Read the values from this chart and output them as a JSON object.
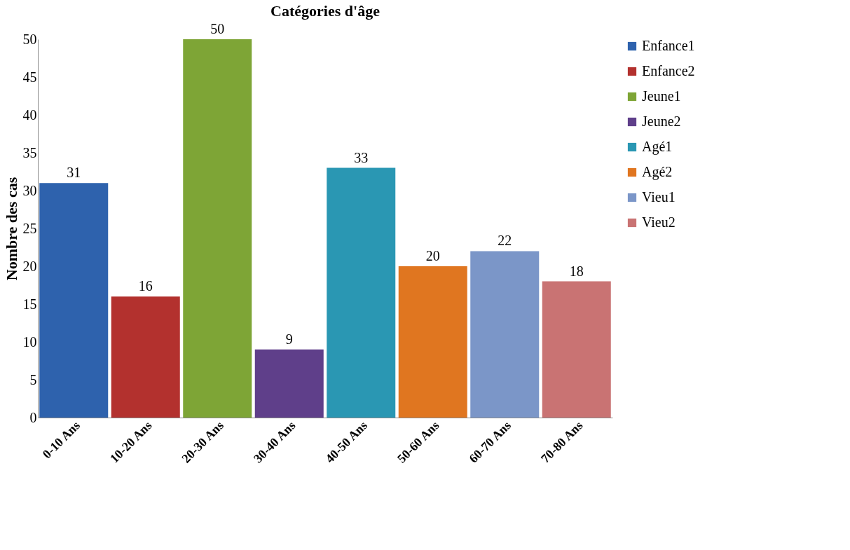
{
  "chart_data": {
    "type": "bar",
    "title": "Catégories d'âge",
    "ylabel": "Nombre des cas",
    "categories": [
      "0-10 Ans",
      "10-20 Ans",
      "20-30 Ans",
      "30-40 Ans",
      "40-50 Ans",
      "50-60 Ans",
      "60-70 Ans",
      "70-80 Ans"
    ],
    "series": [
      {
        "name": "Enfance1",
        "color": "#2e62ad",
        "values": [
          31,
          null,
          null,
          null,
          null,
          null,
          null,
          null
        ]
      },
      {
        "name": "Enfance2",
        "color": "#b3312e",
        "values": [
          null,
          16,
          null,
          null,
          null,
          null,
          null,
          null
        ]
      },
      {
        "name": "Jeune1",
        "color": "#7ea536",
        "values": [
          null,
          null,
          50,
          null,
          null,
          null,
          null,
          null
        ]
      },
      {
        "name": "Jeune2",
        "color": "#5f3f8a",
        "values": [
          null,
          null,
          null,
          9,
          null,
          null,
          null,
          null
        ]
      },
      {
        "name": "Agé1",
        "color": "#2a97b3",
        "values": [
          null,
          null,
          null,
          null,
          33,
          null,
          null,
          null
        ]
      },
      {
        "name": "Agé2",
        "color": "#e07620",
        "values": [
          null,
          null,
          null,
          null,
          null,
          20,
          null,
          null
        ]
      },
      {
        "name": "Vieu1",
        "color": "#7b96c8",
        "values": [
          null,
          null,
          null,
          null,
          null,
          null,
          22,
          null
        ]
      },
      {
        "name": "Vieu2",
        "color": "#c97373",
        "values": [
          null,
          null,
          null,
          null,
          null,
          null,
          null,
          18
        ]
      }
    ],
    "ylim": [
      0,
      50
    ],
    "yticks": [
      0,
      5,
      10,
      15,
      20,
      25,
      30,
      35,
      40,
      45,
      50
    ],
    "grid": false,
    "legend": "right",
    "data_labels": true
  }
}
